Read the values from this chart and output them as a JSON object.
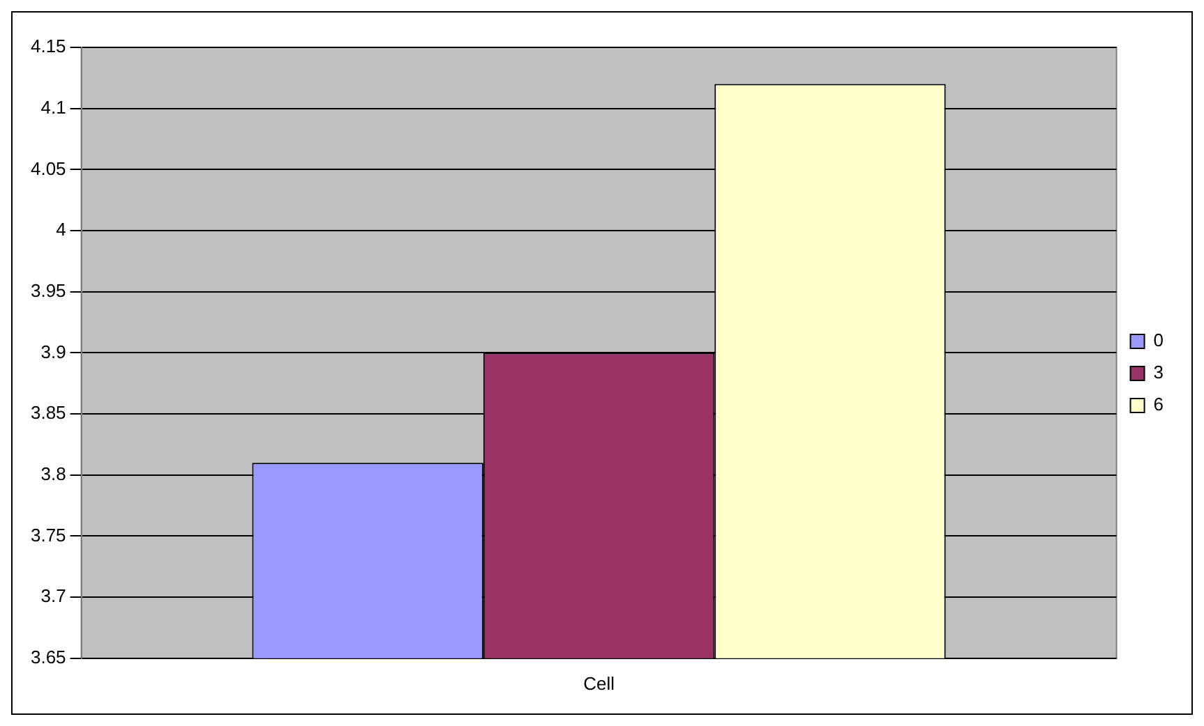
{
  "chart_data": {
    "type": "bar",
    "categories": [
      "Cell"
    ],
    "series": [
      {
        "name": "0",
        "color": "#9999ff",
        "values": [
          3.81
        ]
      },
      {
        "name": "3",
        "color": "#993366",
        "values": [
          3.9
        ]
      },
      {
        "name": "6",
        "color": "#ffffcc",
        "values": [
          4.12
        ]
      }
    ],
    "ylim": [
      3.65,
      4.15
    ],
    "yticks": [
      3.65,
      3.7,
      3.75,
      3.8,
      3.85,
      3.9,
      3.95,
      4,
      4.05,
      4.1,
      4.15
    ],
    "grid": "y",
    "legend": "right"
  }
}
